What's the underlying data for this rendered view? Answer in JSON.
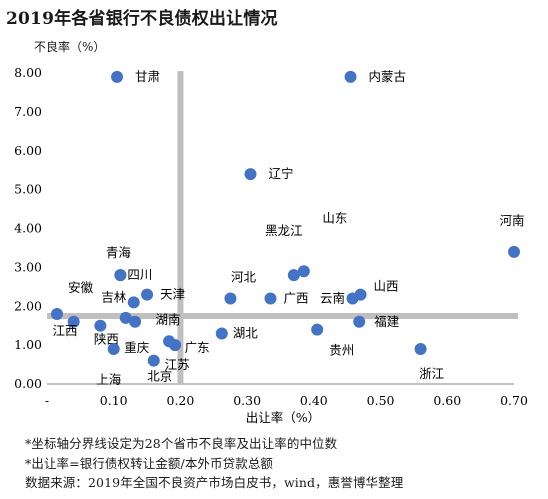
{
  "title": "2019年各省银行不良债权出让情况",
  "notes": [
    "*坐标轴分界线设定为28个省市不良率及出让率的中位数",
    "*出让率=银行债权转让金额/本外币贷款总额",
    "数据来源：2019年全国不良资产市场白皮书，wind，惠誉博华整理"
  ],
  "colors": {
    "point": "#4472c4",
    "divider": "#bfbfbf",
    "axis": "#888888"
  },
  "chart_data": {
    "type": "scatter",
    "xlabel": "出让率（%）",
    "ylabel": "不良率（%）",
    "xlim": [
      0,
      0.7
    ],
    "ylim": [
      0,
      8
    ],
    "x_ticks": [
      "-",
      "0.10",
      "0.20",
      "0.30",
      "0.40",
      "0.50",
      "0.60",
      "0.70"
    ],
    "y_ticks": [
      "0.00",
      "1.00",
      "2.00",
      "3.00",
      "4.00",
      "5.00",
      "6.00",
      "7.00",
      "8.00"
    ],
    "median_lines": {
      "x": 0.2,
      "y": 1.75
    },
    "grid": false,
    "points": [
      {
        "name": "甘肃",
        "x": 0.105,
        "y": 7.9
      },
      {
        "name": "内蒙古",
        "x": 0.455,
        "y": 7.9
      },
      {
        "name": "辽宁",
        "x": 0.305,
        "y": 5.4
      },
      {
        "name": "河南",
        "x": 0.7,
        "y": 3.4
      },
      {
        "name": "青海",
        "x": 0.11,
        "y": 2.8
      },
      {
        "name": "四川",
        "x": 0.11,
        "y": 2.8
      },
      {
        "name": "黑龙江",
        "x": 0.37,
        "y": 2.8
      },
      {
        "name": "山东",
        "x": 0.385,
        "y": 2.9
      },
      {
        "name": "山西",
        "x": 0.47,
        "y": 2.3
      },
      {
        "name": "云南",
        "x": 0.458,
        "y": 2.2
      },
      {
        "name": "河北",
        "x": 0.275,
        "y": 2.2
      },
      {
        "name": "广西",
        "x": 0.335,
        "y": 2.2
      },
      {
        "name": "天津",
        "x": 0.15,
        "y": 2.3
      },
      {
        "name": "吉林",
        "x": 0.13,
        "y": 2.1
      },
      {
        "name": "安徽",
        "x": 0.04,
        "y": 1.6
      },
      {
        "name": "江西",
        "x": 0.015,
        "y": 1.8
      },
      {
        "name": "陕西",
        "x": 0.08,
        "y": 1.5
      },
      {
        "name": "重庆",
        "x": 0.118,
        "y": 1.7
      },
      {
        "name": "湖南",
        "x": 0.132,
        "y": 1.6
      },
      {
        "name": "上海",
        "x": 0.1,
        "y": 0.9
      },
      {
        "name": "北京",
        "x": 0.16,
        "y": 0.6
      },
      {
        "name": "江苏",
        "x": 0.183,
        "y": 1.1
      },
      {
        "name": "广东",
        "x": 0.192,
        "y": 1.0
      },
      {
        "name": "湖北",
        "x": 0.262,
        "y": 1.3
      },
      {
        "name": "贵州",
        "x": 0.405,
        "y": 1.4
      },
      {
        "name": "福建",
        "x": 0.468,
        "y": 1.6
      },
      {
        "name": "浙江",
        "x": 0.56,
        "y": 0.9
      }
    ]
  }
}
